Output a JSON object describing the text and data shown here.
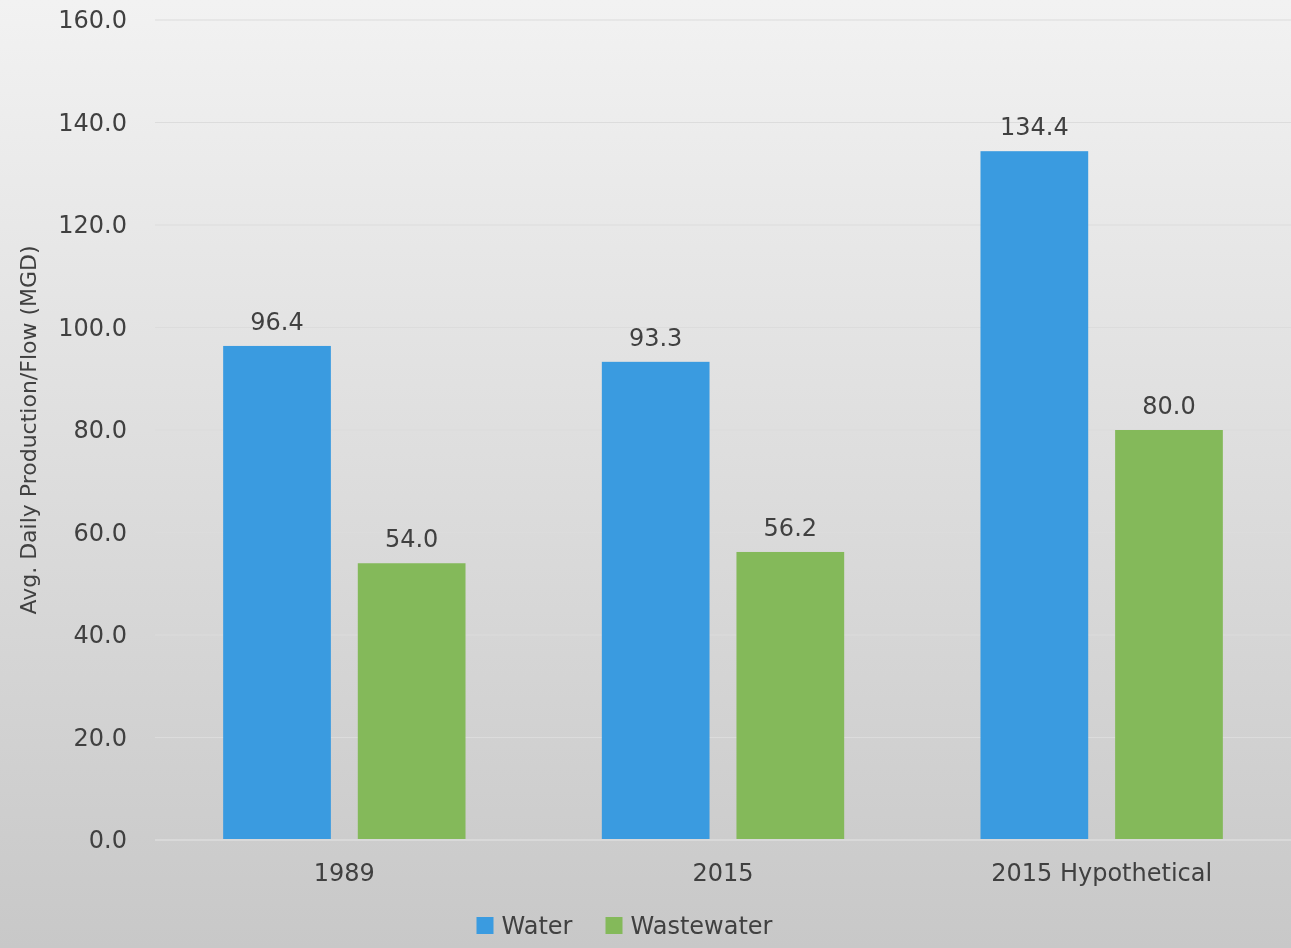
{
  "chart_data": {
    "type": "bar",
    "ylabel": "Avg. Daily Production/Flow (MGD)",
    "categories": [
      "1989",
      "2015",
      "2015 Hypothetical"
    ],
    "series": [
      {
        "name": "Water",
        "color": "#3a9be0",
        "values": [
          96.4,
          93.3,
          134.4
        ],
        "value_labels": [
          "96.4",
          "93.3",
          "134.4"
        ]
      },
      {
        "name": "Wastewater",
        "color": "#84b95a",
        "values": [
          54.0,
          56.2,
          80.0
        ],
        "value_labels": [
          "54.0",
          "56.2",
          "80.0"
        ]
      }
    ],
    "ylim": [
      0,
      160
    ],
    "yticks": [
      {
        "value": 0,
        "label": "0.0"
      },
      {
        "value": 20,
        "label": "20.0"
      },
      {
        "value": 40,
        "label": "40.0"
      },
      {
        "value": 60,
        "label": "60.0"
      },
      {
        "value": 80,
        "label": "80.0"
      },
      {
        "value": 100,
        "label": "100.0"
      },
      {
        "value": 120,
        "label": "120.0"
      },
      {
        "value": 140,
        "label": "140.0"
      },
      {
        "value": 160,
        "label": "160.0"
      }
    ],
    "grid": "y",
    "legend": "bottom"
  }
}
